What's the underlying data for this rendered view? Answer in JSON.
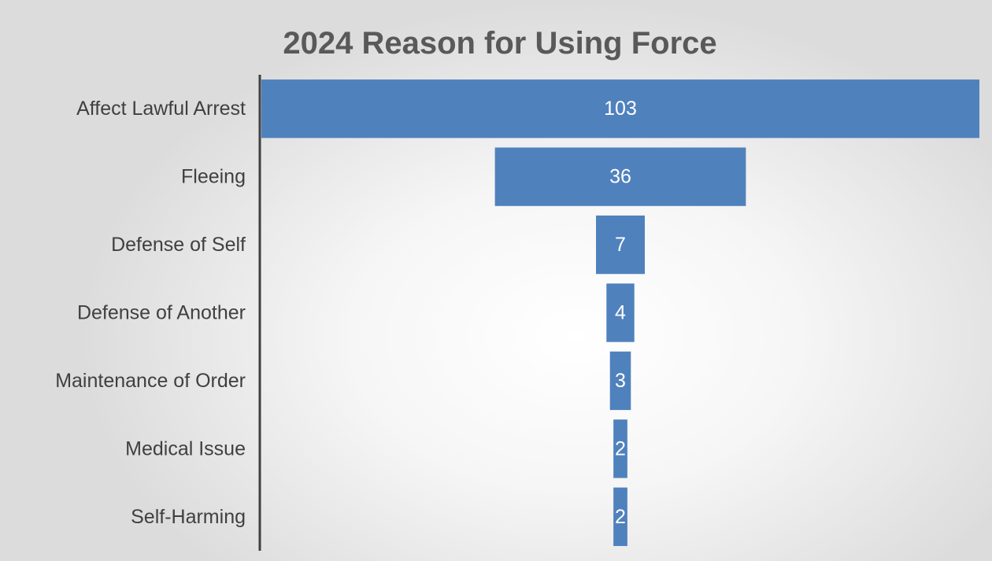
{
  "chart_data": {
    "type": "bar",
    "orientation": "horizontal",
    "layout": "funnel",
    "title": "2024 Reason for Using Force",
    "categories": [
      "Affect Lawful Arrest",
      "Fleeing",
      "Defense of Self",
      "Defense of Another",
      "Maintenance of Order",
      "Medical Issue",
      "Self-Harming"
    ],
    "values": [
      103,
      36,
      7,
      4,
      3,
      2,
      2
    ],
    "data_labels": [
      "103",
      "36",
      "7",
      "4",
      "3",
      "2",
      "2"
    ],
    "xlabel": "",
    "ylabel": "",
    "grid": false,
    "legend": "none",
    "bar_color": "#4f81bd",
    "label_color": "#ffffff"
  }
}
